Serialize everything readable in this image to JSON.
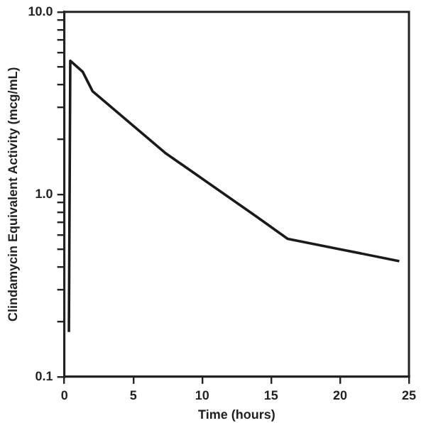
{
  "chart_data": {
    "type": "line",
    "xlabel": "Time (hours)",
    "ylabel": "Clindamycin Equivalent Activity (mcg/mL)",
    "x": [
      0.33,
      0.43,
      1.33,
      2.05,
      7.3,
      14.0,
      16.2,
      20.0,
      24.3
    ],
    "series": [
      {
        "color": "#1a1a1a",
        "values": [
          0.176,
          5.4,
          4.7,
          3.67,
          1.69,
          0.75,
          0.57,
          0.5,
          0.43
        ]
      }
    ],
    "log": "y",
    "xlim": [
      0,
      25
    ],
    "xticks": [
      0,
      5,
      10,
      15,
      20,
      25
    ],
    "ylim": [
      0.1,
      10
    ],
    "yticks": [
      {
        "value": 0.1,
        "label": "0.1"
      },
      {
        "value": 0.2,
        "label": null
      },
      {
        "value": 0.3,
        "label": null
      },
      {
        "value": 0.4,
        "label": null
      },
      {
        "value": 0.5,
        "label": null
      },
      {
        "value": 0.6,
        "label": null
      },
      {
        "value": 0.7,
        "label": null
      },
      {
        "value": 0.8,
        "label": null
      },
      {
        "value": 0.9,
        "label": null
      },
      {
        "value": 1,
        "label": "1.0"
      },
      {
        "value": 2,
        "label": null
      },
      {
        "value": 3,
        "label": null
      },
      {
        "value": 4,
        "label": null
      },
      {
        "value": 5,
        "label": null
      },
      {
        "value": 6,
        "label": null
      },
      {
        "value": 7,
        "label": null
      },
      {
        "value": 8,
        "label": null
      },
      {
        "value": 9,
        "label": null
      },
      {
        "value": 10,
        "label": "10.0"
      }
    ],
    "grid": false,
    "legend": false,
    "marker": "none",
    "line_style": "solid"
  }
}
